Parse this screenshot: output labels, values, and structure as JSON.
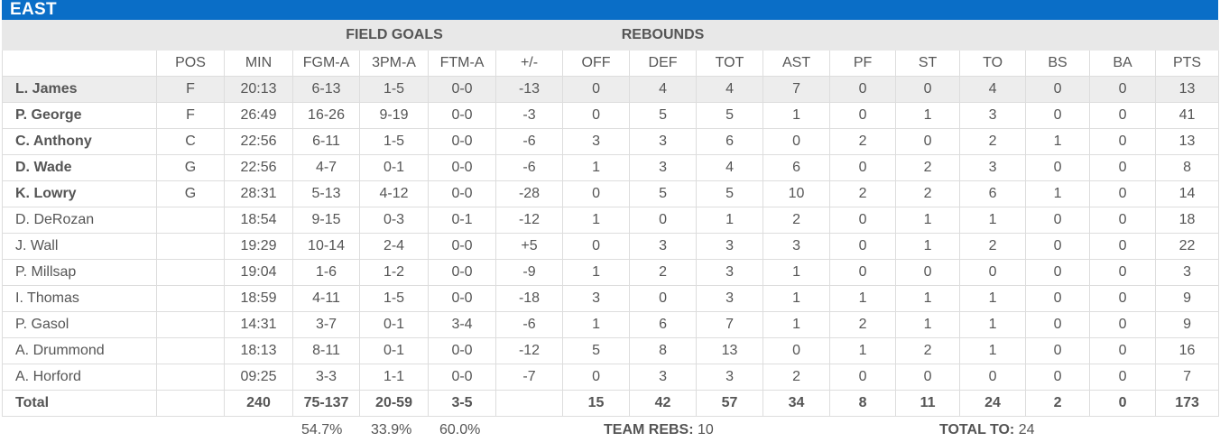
{
  "team": {
    "name": "EAST"
  },
  "groups": {
    "field_goals": "FIELD GOALS",
    "rebounds": "REBOUNDS"
  },
  "columns": [
    "",
    "POS",
    "MIN",
    "FGM-A",
    "3PM-A",
    "FTM-A",
    "+/-",
    "OFF",
    "DEF",
    "TOT",
    "AST",
    "PF",
    "ST",
    "TO",
    "BS",
    "BA",
    "PTS"
  ],
  "players": [
    {
      "name": "L. James",
      "pos": "F",
      "min": "20:13",
      "fgm_a": "6-13",
      "tpm_a": "1-5",
      "ftm_a": "0-0",
      "pm": "-13",
      "off": "0",
      "def": "4",
      "tot": "4",
      "ast": "7",
      "pf": "0",
      "st": "0",
      "to": "4",
      "bs": "0",
      "ba": "0",
      "pts": "13"
    },
    {
      "name": "P. George",
      "pos": "F",
      "min": "26:49",
      "fgm_a": "16-26",
      "tpm_a": "9-19",
      "ftm_a": "0-0",
      "pm": "-3",
      "off": "0",
      "def": "5",
      "tot": "5",
      "ast": "1",
      "pf": "0",
      "st": "1",
      "to": "3",
      "bs": "0",
      "ba": "0",
      "pts": "41"
    },
    {
      "name": "C. Anthony",
      "pos": "C",
      "min": "22:56",
      "fgm_a": "6-11",
      "tpm_a": "1-5",
      "ftm_a": "0-0",
      "pm": "-6",
      "off": "3",
      "def": "3",
      "tot": "6",
      "ast": "0",
      "pf": "2",
      "st": "0",
      "to": "2",
      "bs": "1",
      "ba": "0",
      "pts": "13"
    },
    {
      "name": "D. Wade",
      "pos": "G",
      "min": "22:56",
      "fgm_a": "4-7",
      "tpm_a": "0-1",
      "ftm_a": "0-0",
      "pm": "-6",
      "off": "1",
      "def": "3",
      "tot": "4",
      "ast": "6",
      "pf": "0",
      "st": "2",
      "to": "3",
      "bs": "0",
      "ba": "0",
      "pts": "8"
    },
    {
      "name": "K. Lowry",
      "pos": "G",
      "min": "28:31",
      "fgm_a": "5-13",
      "tpm_a": "4-12",
      "ftm_a": "0-0",
      "pm": "-28",
      "off": "0",
      "def": "5",
      "tot": "5",
      "ast": "10",
      "pf": "2",
      "st": "2",
      "to": "6",
      "bs": "1",
      "ba": "0",
      "pts": "14"
    },
    {
      "name": "D. DeRozan",
      "pos": "",
      "min": "18:54",
      "fgm_a": "9-15",
      "tpm_a": "0-3",
      "ftm_a": "0-1",
      "pm": "-12",
      "off": "1",
      "def": "0",
      "tot": "1",
      "ast": "2",
      "pf": "0",
      "st": "1",
      "to": "1",
      "bs": "0",
      "ba": "0",
      "pts": "18"
    },
    {
      "name": "J. Wall",
      "pos": "",
      "min": "19:29",
      "fgm_a": "10-14",
      "tpm_a": "2-4",
      "ftm_a": "0-0",
      "pm": "+5",
      "off": "0",
      "def": "3",
      "tot": "3",
      "ast": "3",
      "pf": "0",
      "st": "1",
      "to": "2",
      "bs": "0",
      "ba": "0",
      "pts": "22"
    },
    {
      "name": "P. Millsap",
      "pos": "",
      "min": "19:04",
      "fgm_a": "1-6",
      "tpm_a": "1-2",
      "ftm_a": "0-0",
      "pm": "-9",
      "off": "1",
      "def": "2",
      "tot": "3",
      "ast": "1",
      "pf": "0",
      "st": "0",
      "to": "0",
      "bs": "0",
      "ba": "0",
      "pts": "3"
    },
    {
      "name": "I. Thomas",
      "pos": "",
      "min": "18:59",
      "fgm_a": "4-11",
      "tpm_a": "1-5",
      "ftm_a": "0-0",
      "pm": "-18",
      "off": "3",
      "def": "0",
      "tot": "3",
      "ast": "1",
      "pf": "1",
      "st": "1",
      "to": "1",
      "bs": "0",
      "ba": "0",
      "pts": "9"
    },
    {
      "name": "P. Gasol",
      "pos": "",
      "min": "14:31",
      "fgm_a": "3-7",
      "tpm_a": "0-1",
      "ftm_a": "3-4",
      "pm": "-6",
      "off": "1",
      "def": "6",
      "tot": "7",
      "ast": "1",
      "pf": "2",
      "st": "1",
      "to": "1",
      "bs": "0",
      "ba": "0",
      "pts": "9"
    },
    {
      "name": "A. Drummond",
      "pos": "",
      "min": "18:13",
      "fgm_a": "8-11",
      "tpm_a": "0-1",
      "ftm_a": "0-0",
      "pm": "-12",
      "off": "5",
      "def": "8",
      "tot": "13",
      "ast": "0",
      "pf": "1",
      "st": "2",
      "to": "1",
      "bs": "0",
      "ba": "0",
      "pts": "16"
    },
    {
      "name": "A. Horford",
      "pos": "",
      "min": "09:25",
      "fgm_a": "3-3",
      "tpm_a": "1-1",
      "ftm_a": "0-0",
      "pm": "-7",
      "off": "0",
      "def": "3",
      "tot": "3",
      "ast": "2",
      "pf": "0",
      "st": "0",
      "to": "0",
      "bs": "0",
      "ba": "0",
      "pts": "7"
    }
  ],
  "total": {
    "name": "Total",
    "pos": "",
    "min": "240",
    "fgm_a": "75-137",
    "tpm_a": "20-59",
    "ftm_a": "3-5",
    "pm": "",
    "off": "15",
    "def": "42",
    "tot": "57",
    "ast": "34",
    "pf": "8",
    "st": "11",
    "to": "24",
    "bs": "2",
    "ba": "0",
    "pts": "173"
  },
  "footer": {
    "fg_pct": "54.7%",
    "tp_pct": "33.9%",
    "ft_pct": "60.0%",
    "team_rebs_label": "TEAM REBS:",
    "team_rebs_value": "10",
    "total_to_label": "TOTAL TO:",
    "total_to_value": "24"
  },
  "colors": {
    "header_bar": "#0a6ec7",
    "group_row": "#e8e8e8",
    "highlight_row": "#ededed"
  }
}
